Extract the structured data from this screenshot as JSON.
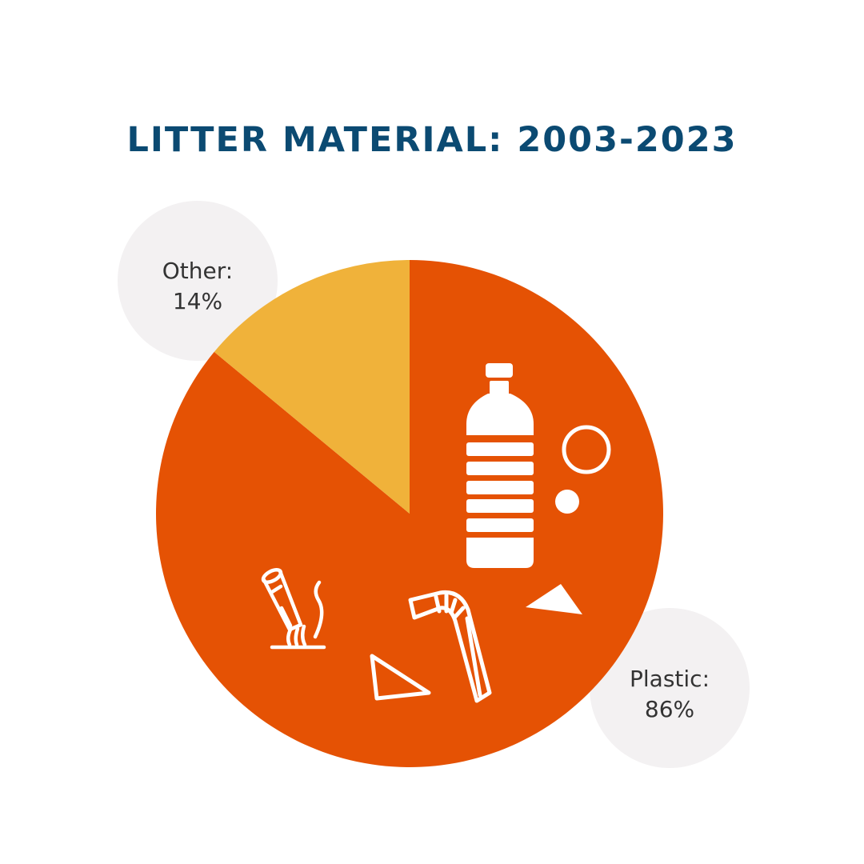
{
  "title": "LITTER MATERIAL: 2003-2023",
  "colors": {
    "title": "#0b4a72",
    "bubble": "#f3f1f2",
    "label": "#333333",
    "icon": "#ffffff"
  },
  "icons": [
    "plastic-bottle-icon",
    "bottle-cap-ring-icon",
    "cigarette-butt-icon",
    "drinking-straw-icon",
    "plastic-fragment-icon"
  ],
  "chart_data": {
    "type": "pie",
    "unit": "%",
    "slices": [
      {
        "name": "Plastic",
        "value": 86,
        "color": "#e55204",
        "label_line1": "Plastic:",
        "label_line2": "86%"
      },
      {
        "name": "Other",
        "value": 14,
        "color": "#f0b23a",
        "label_line1": "Other:",
        "label_line2": "14%"
      }
    ]
  }
}
